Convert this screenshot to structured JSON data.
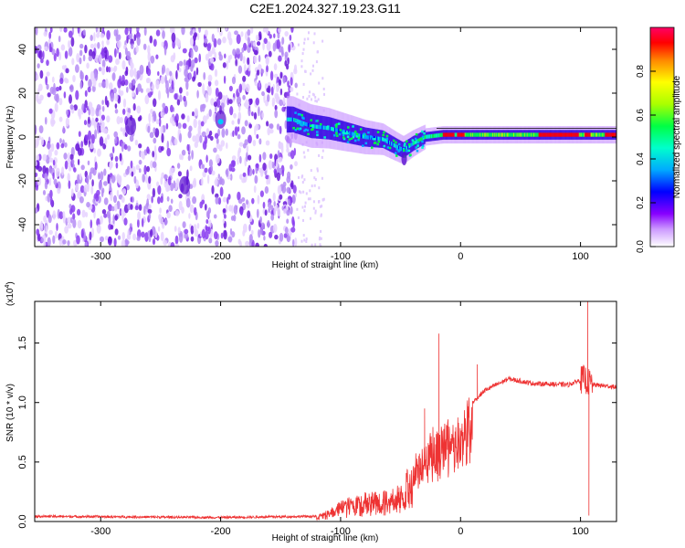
{
  "title": "C2E1.2024.327.19.23.G11",
  "chart_data": [
    {
      "type": "heatmap",
      "xlabel": "Height of straight line (km)",
      "ylabel": "Frequency (Hz)",
      "xlim": [
        -355,
        130
      ],
      "ylim": [
        -50,
        50
      ],
      "xticks": [
        -300,
        -200,
        -100,
        0,
        100
      ],
      "xtick_labels": [
        "-300",
        "-200",
        "-100",
        "0",
        "100"
      ],
      "yticks": [
        -40,
        -20,
        0,
        20,
        40
      ],
      "ytick_labels": [
        "-40",
        "-20",
        "0",
        "20",
        "40"
      ],
      "noise_region_x": [
        -355,
        -137
      ],
      "signal_track": [
        {
          "x": -140,
          "y": 8
        },
        {
          "x": -125,
          "y": 5
        },
        {
          "x": -110,
          "y": 4
        },
        {
          "x": -95,
          "y": 2
        },
        {
          "x": -80,
          "y": 0
        },
        {
          "x": -65,
          "y": -1
        },
        {
          "x": -55,
          "y": -4
        },
        {
          "x": -48,
          "y": -6
        },
        {
          "x": -40,
          "y": -3
        },
        {
          "x": -30,
          "y": 0
        },
        {
          "x": -15,
          "y": 1
        },
        {
          "x": 0,
          "y": 1
        },
        {
          "x": 30,
          "y": 1
        },
        {
          "x": 60,
          "y": 1
        },
        {
          "x": 100,
          "y": 1
        },
        {
          "x": 130,
          "y": 1
        }
      ],
      "colorbar": {
        "label": "Normalized spectral amplitude",
        "range": [
          0,
          1
        ],
        "ticks": [
          0.0,
          0.2,
          0.4,
          0.6,
          0.8
        ],
        "tick_labels": [
          "0.0",
          "0.2",
          "0.4",
          "0.6",
          "0.8"
        ],
        "colors": [
          "#ffffff",
          "#8800ff",
          "#0000ff",
          "#00ddff",
          "#00ff66",
          "#aaff00",
          "#ffff00",
          "#ff8800",
          "#ff0000",
          "#ff0066"
        ]
      }
    },
    {
      "type": "line",
      "xlabel": "Height of straight line (km)",
      "ylabel": "SNR (10 * v/v)",
      "scale_label": "(x10",
      "scale_exp": "4",
      "scale_close": ")",
      "xlim": [
        -355,
        130
      ],
      "ylim": [
        0,
        1.85
      ],
      "xticks": [
        -300,
        -200,
        -100,
        0,
        100
      ],
      "xtick_labels": [
        "-300",
        "-200",
        "-100",
        "0",
        "100"
      ],
      "yticks": [
        0.0,
        0.5,
        1.0,
        1.5
      ],
      "ytick_labels": [
        "0.0",
        "0.5",
        "1.0",
        "1.5"
      ],
      "color": "#ee3333",
      "envelope": [
        {
          "x": -355,
          "y": 0.04
        },
        {
          "x": -200,
          "y": 0.03
        },
        {
          "x": -120,
          "y": 0.04
        },
        {
          "x": -110,
          "y": 0.1
        },
        {
          "x": -90,
          "y": 0.2
        },
        {
          "x": -70,
          "y": 0.22
        },
        {
          "x": -50,
          "y": 0.28
        },
        {
          "x": -35,
          "y": 0.55
        },
        {
          "x": -25,
          "y": 0.7
        },
        {
          "x": -10,
          "y": 0.78
        },
        {
          "x": 0,
          "y": 0.85
        },
        {
          "x": 10,
          "y": 1.0
        },
        {
          "x": 20,
          "y": 1.1
        },
        {
          "x": 40,
          "y": 1.2
        },
        {
          "x": 60,
          "y": 1.16
        },
        {
          "x": 90,
          "y": 1.15
        },
        {
          "x": 103,
          "y": 1.2
        },
        {
          "x": 110,
          "y": 1.15
        },
        {
          "x": 130,
          "y": 1.13
        }
      ],
      "spikes": [
        {
          "x": -18,
          "y": 1.58
        },
        {
          "x": -30,
          "y": 0.95
        },
        {
          "x": 14,
          "y": 1.32
        },
        {
          "x": 106,
          "y": 1.85
        },
        {
          "x": 107,
          "y": 0.05
        }
      ]
    }
  ]
}
